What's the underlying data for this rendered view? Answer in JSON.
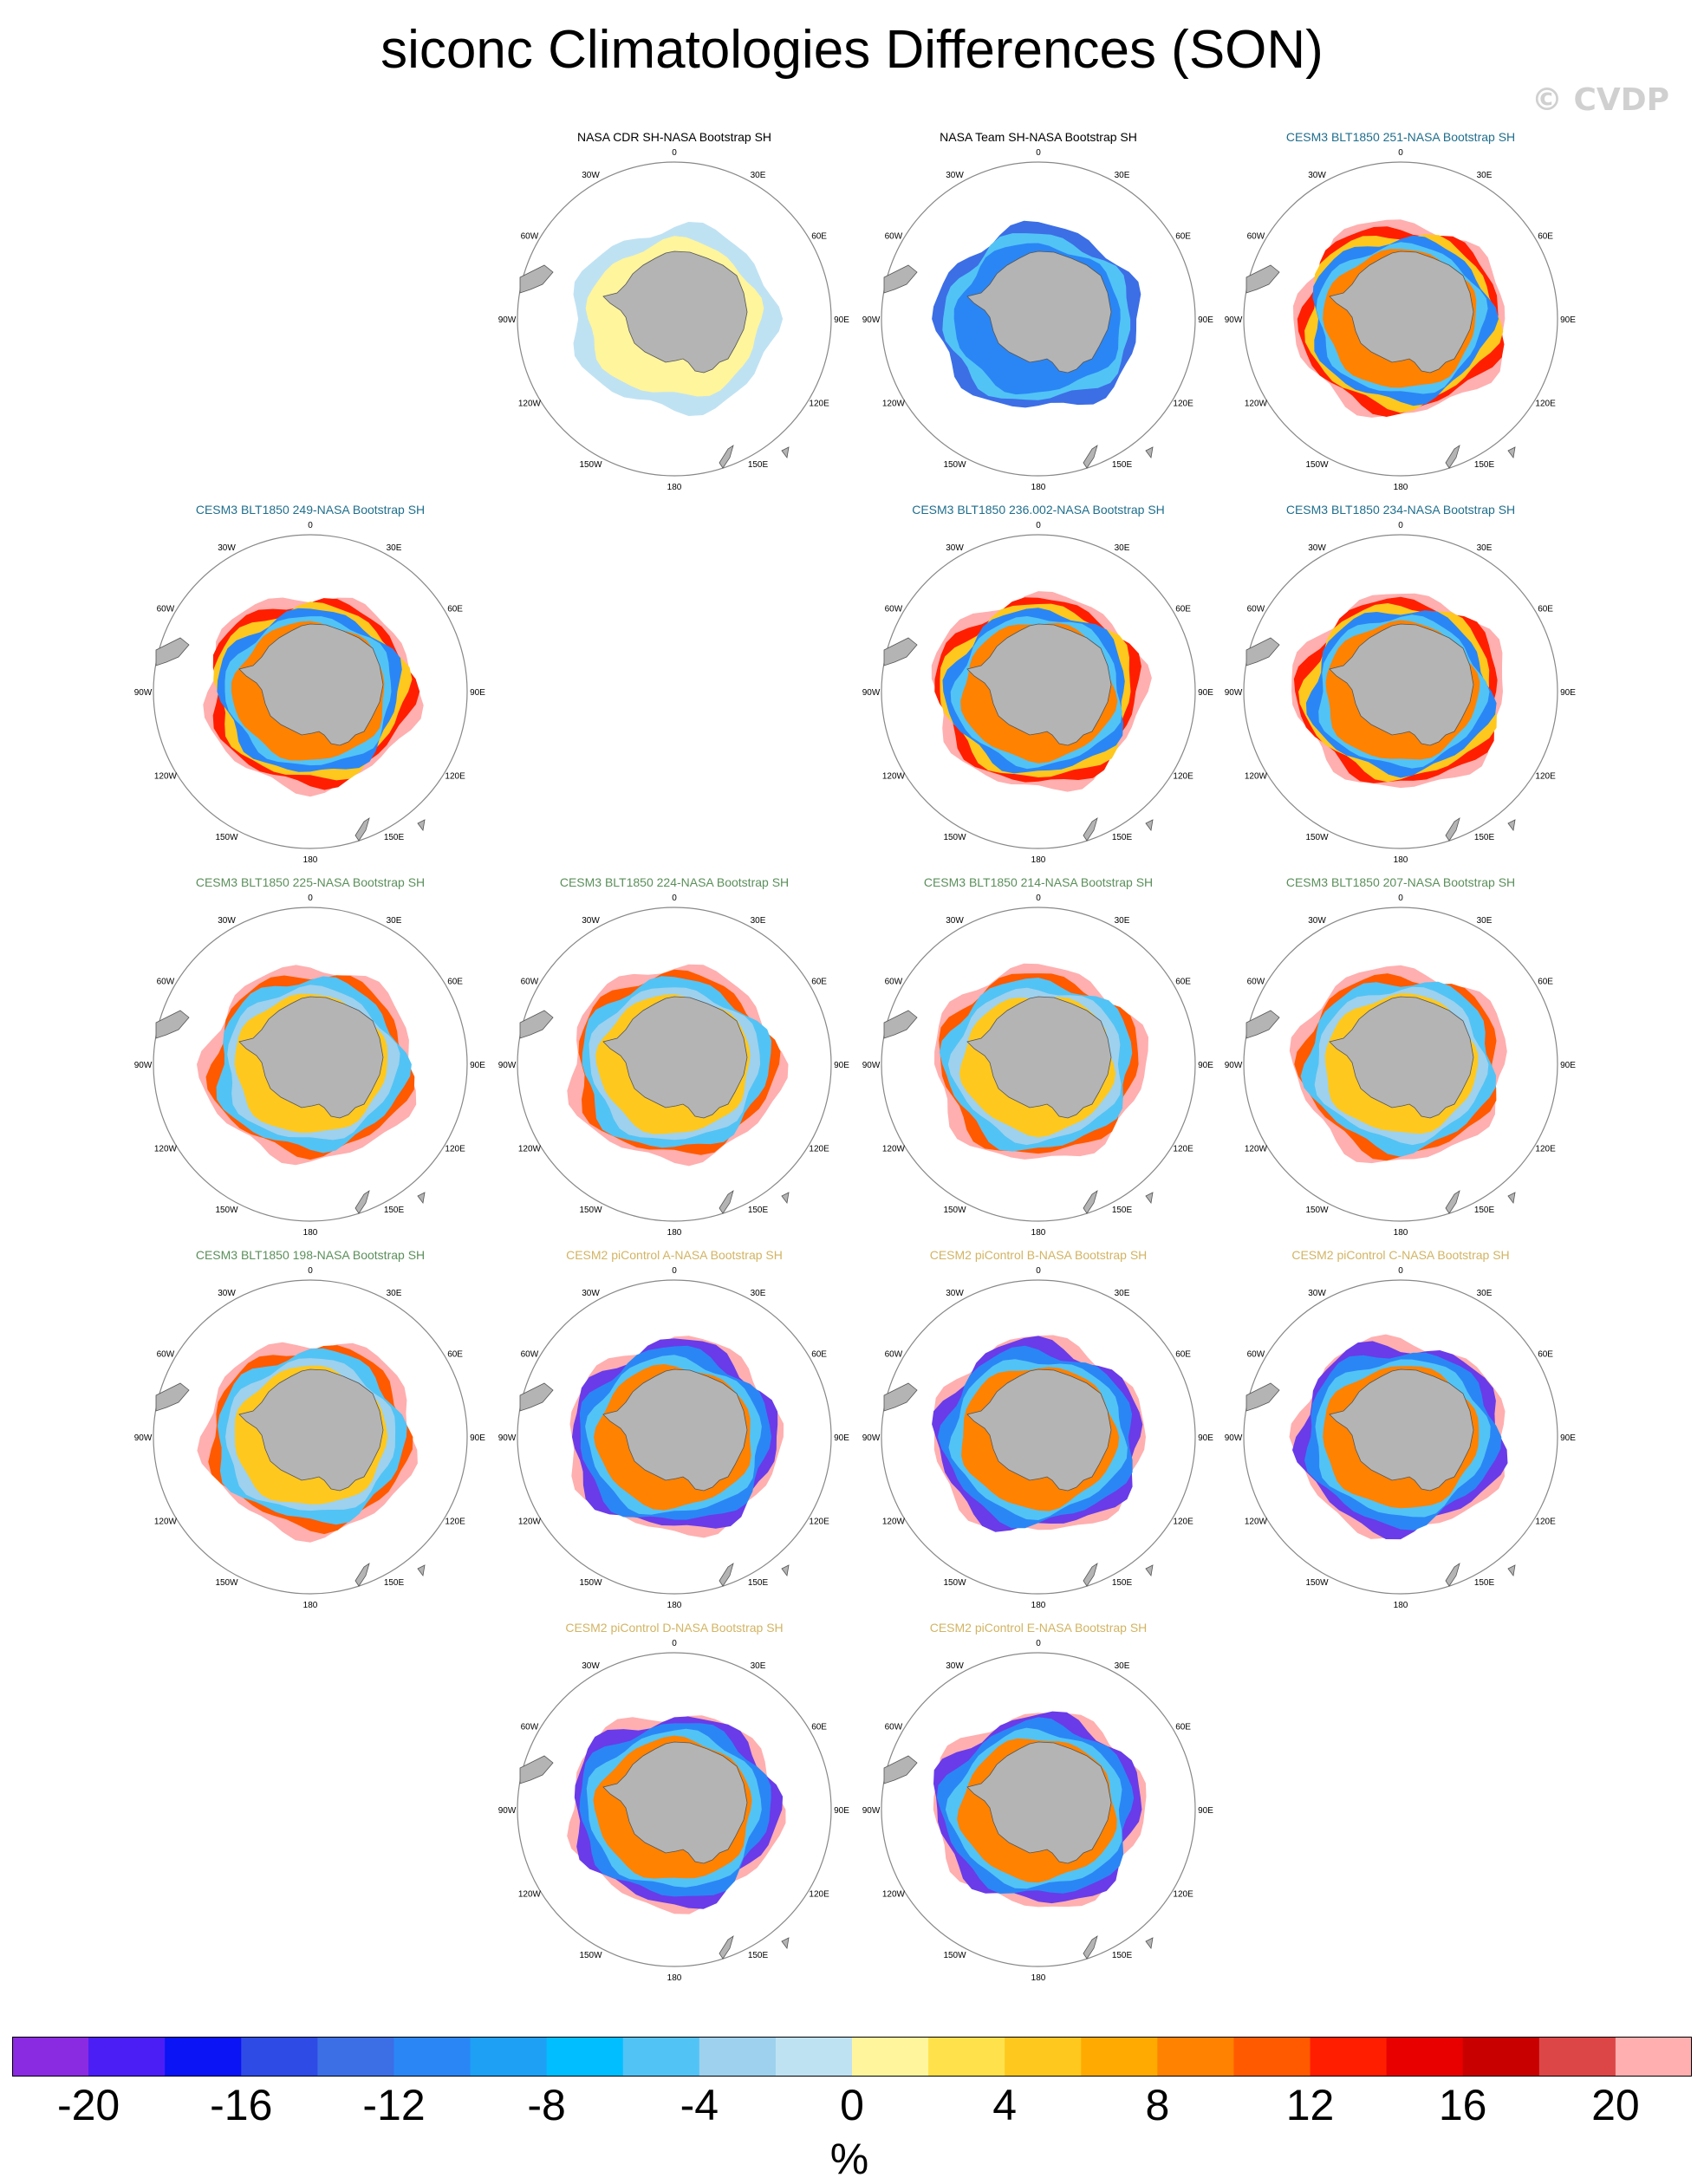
{
  "title": "siconc Climatologies Differences (SON)",
  "watermark": "© CVDP",
  "lon_labels": [
    "0",
    "30E",
    "60E",
    "90E",
    "120E",
    "150E",
    "180",
    "150W",
    "120W",
    "90W",
    "60W",
    "30W"
  ],
  "colors": {
    "title_obs": "#000000",
    "title_blt_a": "#1f6e8c",
    "title_blt_b": "#5b8f5b",
    "title_picontrol": "#d2b463",
    "land": "#b4b4b4",
    "land_outline": "#555555",
    "ring": "#888888"
  },
  "panels": [
    {
      "title": "NASA CDR SH-NASA Bootstrap SH",
      "title_color": "title_obs",
      "style": "cdr"
    },
    {
      "title": "NASA Team SH-NASA Bootstrap SH",
      "title_color": "title_obs",
      "style": "team"
    },
    {
      "title": "CESM3 BLT1850 251-NASA Bootstrap SH",
      "title_color": "title_blt_a",
      "style": "blt"
    },
    {
      "title": "CESM3 BLT1850 249-NASA Bootstrap SH",
      "title_color": "title_blt_a",
      "style": "blt"
    },
    {
      "title": "CESM3 BLT1850 236.002-NASA Bootstrap SH",
      "title_color": "title_blt_a",
      "style": "blt"
    },
    {
      "title": "CESM3 BLT1850 234-NASA Bootstrap SH",
      "title_color": "title_blt_a",
      "style": "blt"
    },
    {
      "title": "CESM3 BLT1850 225-NASA Bootstrap SH",
      "title_color": "title_blt_b",
      "style": "blt2"
    },
    {
      "title": "CESM3 BLT1850 224-NASA Bootstrap SH",
      "title_color": "title_blt_b",
      "style": "blt2"
    },
    {
      "title": "CESM3 BLT1850 214-NASA Bootstrap SH",
      "title_color": "title_blt_b",
      "style": "blt2"
    },
    {
      "title": "CESM3 BLT1850 207-NASA Bootstrap SH",
      "title_color": "title_blt_b",
      "style": "blt2"
    },
    {
      "title": "CESM3 BLT1850 198-NASA Bootstrap SH",
      "title_color": "title_blt_b",
      "style": "blt2"
    },
    {
      "title": "CESM2 piControl A-NASA Bootstrap SH",
      "title_color": "title_picontrol",
      "style": "pic"
    },
    {
      "title": "CESM2 piControl B-NASA Bootstrap SH",
      "title_color": "title_picontrol",
      "style": "pic"
    },
    {
      "title": "CESM2 piControl C-NASA Bootstrap SH",
      "title_color": "title_picontrol",
      "style": "pic"
    },
    {
      "title": "CESM2 piControl D-NASA Bootstrap SH",
      "title_color": "title_picontrol",
      "style": "pic"
    },
    {
      "title": "CESM2 piControl E-NASA Bootstrap SH",
      "title_color": "title_picontrol",
      "style": "pic"
    }
  ],
  "colorbar": {
    "unit": "%",
    "tick_labels": [
      "-20",
      "-16",
      "-12",
      "-8",
      "-4",
      "0",
      "4",
      "8",
      "12",
      "16",
      "20"
    ],
    "colors": [
      "#8a2be2",
      "#4b1ef5",
      "#0a14f5",
      "#2e4be6",
      "#3c6ee6",
      "#2a86f5",
      "#1ea0f5",
      "#00beff",
      "#52c3f5",
      "#9dd1ee",
      "#bfe2f3",
      "#fff59c",
      "#ffe14b",
      "#ffc81e",
      "#ffaa00",
      "#ff8200",
      "#ff5a00",
      "#ff1e00",
      "#e80000",
      "#c80000",
      "#dc4646",
      "#ffafaf"
    ]
  }
}
